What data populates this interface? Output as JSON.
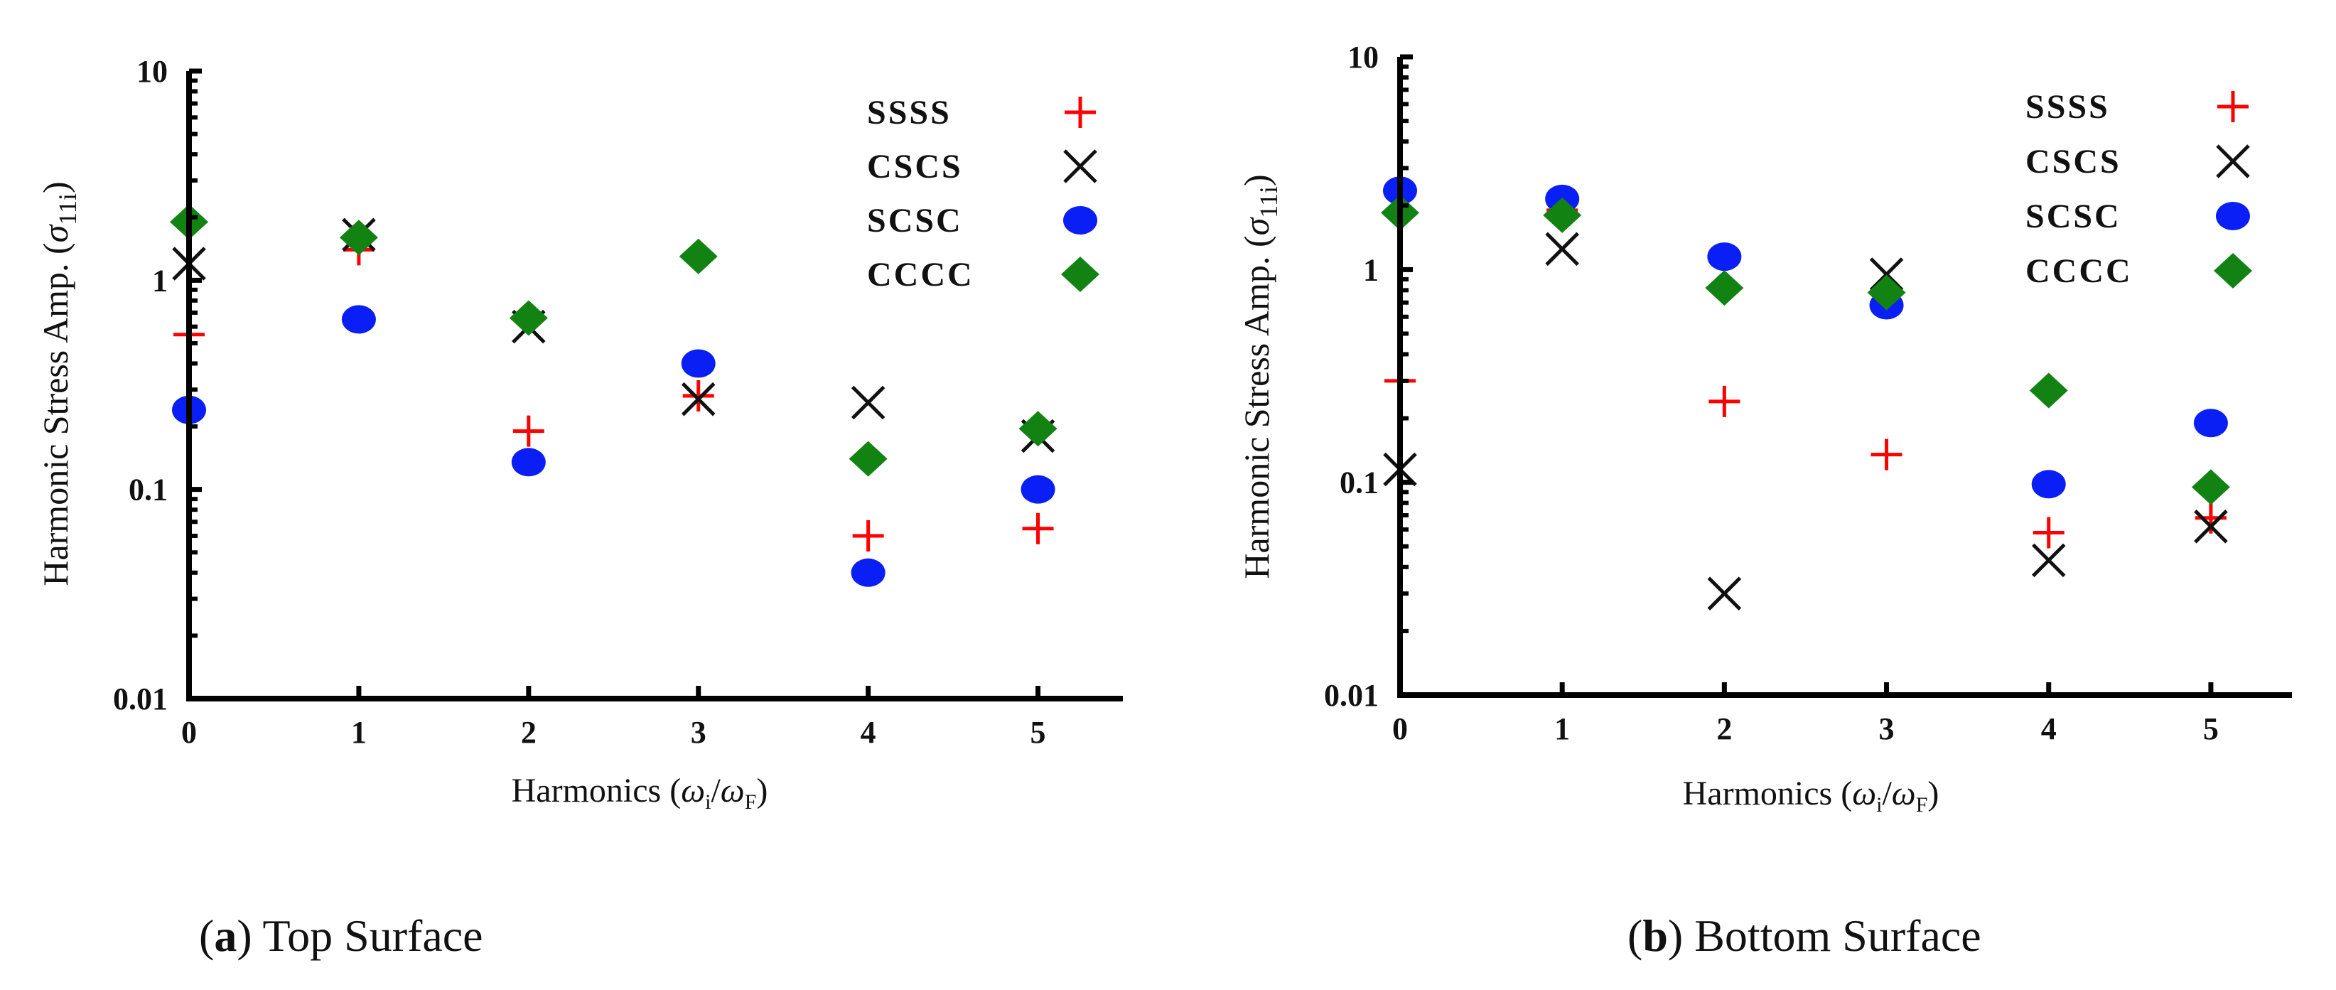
{
  "chart_data": [
    {
      "type": "scatter",
      "title": "",
      "caption_letter": "a",
      "caption_text": " Top Surface",
      "ylabel_prefix": "Harmonic Stress Amp. (",
      "ylabel_symbol": "σ",
      "ylabel_sub": "11i",
      "ylabel_suffix": ")",
      "xlabel_prefix": "Harmonics (",
      "xlabel_w1": "ω",
      "xlabel_sub1": "i",
      "xlabel_slash": "/",
      "xlabel_w2": "ω",
      "xlabel_sub2": "F",
      "xlabel_suffix": ")",
      "yscale": "log",
      "ylim": [
        0.01,
        10
      ],
      "xlim": [
        0,
        5.5
      ],
      "yticks": [
        {
          "v": 0.01,
          "label": "0.01"
        },
        {
          "v": 0.1,
          "label": "0.1"
        },
        {
          "v": 1,
          "label": "1"
        },
        {
          "v": 10,
          "label": "10"
        }
      ],
      "xticks": [
        {
          "v": 0,
          "label": "0"
        },
        {
          "v": 1,
          "label": "1"
        },
        {
          "v": 2,
          "label": "2"
        },
        {
          "v": 3,
          "label": "3"
        },
        {
          "v": 4,
          "label": "4"
        },
        {
          "v": 5,
          "label": "5"
        }
      ],
      "legend_position": "top-right",
      "series": [
        {
          "name": "SSSS",
          "marker": "plus",
          "color": "#ff0000",
          "points": [
            [
              0,
              0.55
            ],
            [
              1,
              1.4
            ],
            [
              2,
              0.19
            ],
            [
              3,
              0.28
            ],
            [
              4,
              0.06
            ],
            [
              5,
              0.065
            ]
          ]
        },
        {
          "name": "CSCS",
          "marker": "x",
          "color": "#111111",
          "points": [
            [
              0,
              1.2
            ],
            [
              1,
              1.65
            ],
            [
              2,
              0.6
            ],
            [
              3,
              0.27
            ],
            [
              4,
              0.26
            ],
            [
              5,
              0.18
            ]
          ]
        },
        {
          "name": "SCSC",
          "marker": "circle",
          "color": "#0a1ff5",
          "points": [
            [
              0,
              0.24
            ],
            [
              1,
              0.65
            ],
            [
              2,
              0.135
            ],
            [
              3,
              0.4
            ],
            [
              4,
              0.04
            ],
            [
              5,
              0.1
            ]
          ]
        },
        {
          "name": "CCCC",
          "marker": "diamond",
          "color": "#128312",
          "points": [
            [
              0,
              1.9
            ],
            [
              1,
              1.6
            ],
            [
              2,
              0.66
            ],
            [
              3,
              1.3
            ],
            [
              4,
              0.14
            ],
            [
              5,
              0.195
            ]
          ]
        }
      ]
    },
    {
      "type": "scatter",
      "title": "",
      "caption_letter": "b",
      "caption_text": " Bottom Surface",
      "ylabel_prefix": "Harmonic Stress Amp. (",
      "ylabel_symbol": "σ",
      "ylabel_sub": "11i",
      "ylabel_suffix": ")",
      "xlabel_prefix": "Harmonics (",
      "xlabel_w1": "ω",
      "xlabel_sub1": "i",
      "xlabel_slash": "/",
      "xlabel_w2": "ω",
      "xlabel_sub2": "F",
      "xlabel_suffix": ")",
      "yscale": "log",
      "ylim": [
        0.01,
        10
      ],
      "xlim": [
        0,
        5.5
      ],
      "yticks": [
        {
          "v": 0.01,
          "label": "0.01"
        },
        {
          "v": 0.1,
          "label": "0.1"
        },
        {
          "v": 1,
          "label": "1"
        },
        {
          "v": 10,
          "label": "10"
        }
      ],
      "xticks": [
        {
          "v": 0,
          "label": "0"
        },
        {
          "v": 1,
          "label": "1"
        },
        {
          "v": 2,
          "label": "2"
        },
        {
          "v": 3,
          "label": "3"
        },
        {
          "v": 4,
          "label": "4"
        },
        {
          "v": 5,
          "label": "5"
        }
      ],
      "legend_position": "top-right",
      "series": [
        {
          "name": "SSSS",
          "marker": "plus",
          "color": "#ff0000",
          "points": [
            [
              0,
              0.3
            ],
            [
              1,
              1.9
            ],
            [
              2,
              0.24
            ],
            [
              3,
              0.135
            ],
            [
              4,
              0.058
            ],
            [
              5,
              0.068
            ]
          ]
        },
        {
          "name": "CSCS",
          "marker": "x",
          "color": "#111111",
          "points": [
            [
              0,
              0.115
            ],
            [
              1,
              1.25
            ],
            [
              2,
              0.03
            ],
            [
              3,
              0.95
            ],
            [
              4,
              0.043
            ],
            [
              5,
              0.062
            ]
          ]
        },
        {
          "name": "SCSC",
          "marker": "circle",
          "color": "#0a1ff5",
          "points": [
            [
              0,
              2.35
            ],
            [
              1,
              2.15
            ],
            [
              2,
              1.15
            ],
            [
              3,
              0.68
            ],
            [
              4,
              0.098
            ],
            [
              5,
              0.19
            ]
          ]
        },
        {
          "name": "CCCC",
          "marker": "diamond",
          "color": "#128312",
          "points": [
            [
              0,
              1.85
            ],
            [
              1,
              1.8
            ],
            [
              2,
              0.82
            ],
            [
              3,
              0.78
            ],
            [
              4,
              0.27
            ],
            [
              5,
              0.095
            ]
          ]
        }
      ]
    }
  ]
}
